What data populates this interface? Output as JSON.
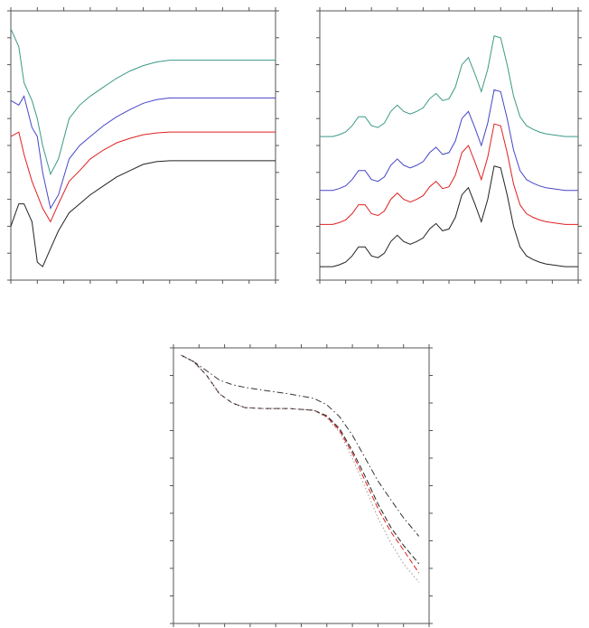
{
  "chart_data": [
    {
      "type": "line",
      "xlim": [
        0,
        100
      ],
      "ylim": [
        0,
        300
      ],
      "xticks": [
        0,
        10,
        20,
        30,
        40,
        50,
        60,
        70,
        80,
        90,
        100
      ],
      "yticks": [
        0,
        30,
        60,
        90,
        120,
        150,
        180,
        210,
        240,
        270,
        300
      ],
      "x": [
        0,
        3,
        5,
        8,
        10,
        12,
        15,
        18,
        22,
        26,
        30,
        35,
        40,
        45,
        50,
        55,
        60,
        70,
        80,
        90,
        100
      ],
      "series": [
        {
          "color": "#3a9a86",
          "line_style": "solid",
          "values": [
            280,
            260,
            220,
            200,
            180,
            150,
            118,
            135,
            180,
            195,
            205,
            215,
            225,
            233,
            239,
            243,
            245,
            245,
            245,
            245,
            245
          ]
        },
        {
          "color": "#4646c8",
          "line_style": "solid",
          "values": [
            200,
            195,
            205,
            170,
            160,
            120,
            80,
            95,
            135,
            150,
            160,
            172,
            182,
            190,
            197,
            201,
            203,
            203,
            203,
            203,
            203
          ]
        },
        {
          "color": "#e02020",
          "line_style": "solid",
          "values": [
            160,
            165,
            140,
            110,
            95,
            80,
            65,
            85,
            110,
            122,
            135,
            145,
            153,
            158,
            162,
            164,
            165,
            165,
            165,
            165,
            165
          ]
        },
        {
          "color": "#222222",
          "line_style": "solid",
          "values": [
            60,
            85,
            85,
            65,
            20,
            15,
            35,
            55,
            75,
            85,
            95,
            105,
            115,
            122,
            129,
            132,
            133,
            133,
            133,
            133,
            133
          ]
        }
      ]
    },
    {
      "type": "line",
      "xlim": [
        0,
        100
      ],
      "ylim": [
        0,
        300
      ],
      "xticks": [
        0,
        10,
        20,
        30,
        40,
        50,
        60,
        70,
        80,
        90,
        100
      ],
      "yticks": [
        0,
        30,
        60,
        90,
        120,
        150,
        180,
        210,
        240,
        270,
        300
      ],
      "x": [
        0,
        2.5,
        5,
        7.5,
        10,
        12.5,
        15,
        17.5,
        20,
        22.5,
        25,
        27.5,
        30,
        32.5,
        35,
        37.5,
        40,
        42.5,
        45,
        47.5,
        50,
        52.5,
        55,
        57.5,
        60,
        62.5,
        65,
        67.5,
        70,
        72.5,
        75,
        77.5,
        80,
        82.5,
        85,
        87.5,
        90,
        92.5,
        95,
        97.5,
        100
      ],
      "series": [
        {
          "color": "#3a9a86",
          "line_style": "solid",
          "values": [
            160,
            160,
            160,
            162,
            165,
            172,
            182,
            182,
            172,
            170,
            175,
            188,
            195,
            188,
            185,
            188,
            192,
            202,
            208,
            200,
            202,
            215,
            240,
            248,
            230,
            210,
            235,
            272,
            270,
            240,
            205,
            182,
            172,
            168,
            165,
            163,
            162,
            161,
            160,
            160,
            160
          ]
        },
        {
          "color": "#4646c8",
          "line_style": "solid",
          "values": [
            100,
            100,
            100,
            102,
            105,
            112,
            122,
            122,
            112,
            110,
            115,
            128,
            135,
            128,
            125,
            128,
            132,
            142,
            148,
            140,
            142,
            155,
            180,
            188,
            170,
            150,
            175,
            212,
            210,
            180,
            145,
            122,
            112,
            108,
            105,
            103,
            102,
            101,
            100,
            100,
            100
          ]
        },
        {
          "color": "#e02020",
          "line_style": "solid",
          "values": [
            62,
            62,
            62,
            64,
            67,
            74,
            84,
            84,
            74,
            72,
            77,
            90,
            97,
            90,
            87,
            90,
            94,
            104,
            110,
            102,
            104,
            117,
            142,
            150,
            132,
            112,
            137,
            174,
            172,
            142,
            107,
            84,
            74,
            70,
            67,
            65,
            64,
            63,
            62,
            62,
            62
          ]
        },
        {
          "color": "#222222",
          "line_style": "solid",
          "values": [
            15,
            15,
            15,
            17,
            20,
            27,
            37,
            37,
            27,
            25,
            30,
            43,
            50,
            43,
            40,
            43,
            47,
            57,
            63,
            55,
            57,
            70,
            95,
            103,
            85,
            65,
            90,
            127,
            125,
            95,
            60,
            37,
            27,
            23,
            20,
            18,
            17,
            16,
            15,
            15,
            15
          ]
        }
      ]
    },
    {
      "type": "line",
      "xlim": [
        0,
        100
      ],
      "ylim": [
        0,
        300
      ],
      "xticks": [
        0,
        10,
        20,
        30,
        40,
        50,
        60,
        70,
        80,
        90,
        100
      ],
      "yticks": [
        0,
        30,
        60,
        90,
        120,
        150,
        180,
        210,
        240,
        270,
        300
      ],
      "x": [
        3,
        8,
        13,
        18,
        23,
        28,
        35,
        45,
        55,
        60,
        65,
        70,
        75,
        80,
        85,
        90,
        96
      ],
      "series": [
        {
          "color": "#333333",
          "line_style": "dashdot",
          "values": [
            292,
            285,
            275,
            265,
            260,
            257,
            254,
            250,
            245,
            238,
            225,
            205,
            180,
            155,
            135,
            115,
            95
          ]
        },
        {
          "color": "#e02020",
          "line_style": "dashed",
          "values": [
            292,
            285,
            270,
            250,
            240,
            235,
            234,
            234,
            232,
            225,
            210,
            185,
            155,
            125,
            100,
            80,
            55
          ]
        },
        {
          "color": "#222222",
          "line_style": "dashed",
          "values": [
            292,
            285,
            270,
            250,
            240,
            235,
            234,
            234,
            232,
            226,
            212,
            188,
            160,
            130,
            105,
            85,
            65
          ]
        },
        {
          "color": "#999999",
          "line_style": "dotted",
          "values": [
            292,
            285,
            270,
            250,
            240,
            235,
            234,
            234,
            232,
            224,
            208,
            180,
            148,
            115,
            88,
            65,
            45
          ]
        }
      ]
    }
  ]
}
